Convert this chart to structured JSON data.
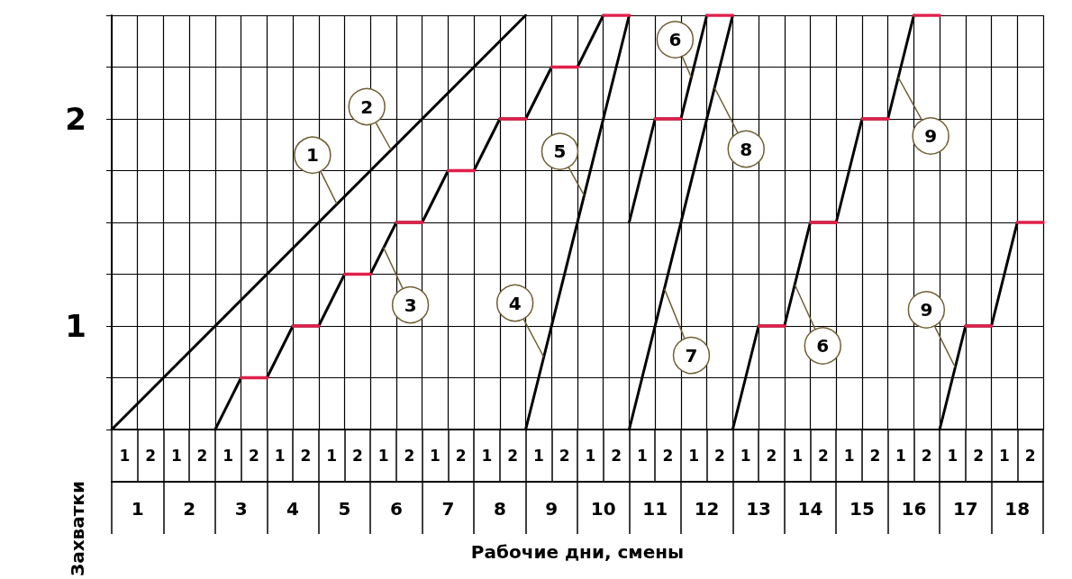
{
  "chart_data": {
    "type": "line",
    "xlabel": "Рабочие дни, смены",
    "ylabel": "Захватки",
    "xlim": [
      0.5,
      18.5
    ],
    "ylim": [
      0.5,
      2.5
    ],
    "grid": true,
    "marker": "none",
    "line_style": "solid",
    "xticks": [
      {
        "value": 0.5,
        "label": null
      },
      1,
      {
        "value": 1.5,
        "label": null
      },
      2,
      {
        "value": 2.5,
        "label": null
      },
      3,
      {
        "value": 3.5,
        "label": null
      },
      4,
      {
        "value": 4.5,
        "label": null
      },
      5,
      {
        "value": 5.5,
        "label": null
      },
      6,
      {
        "value": 6.5,
        "label": null
      },
      7,
      {
        "value": 7.5,
        "label": null
      },
      8,
      {
        "value": 8.5,
        "label": null
      },
      9,
      {
        "value": 9.5,
        "label": null
      },
      10,
      {
        "value": 10.5,
        "label": null
      },
      11,
      {
        "value": 11.5,
        "label": null
      },
      12,
      {
        "value": 12.5,
        "label": null
      },
      13,
      {
        "value": 13.5,
        "label": null
      },
      14,
      {
        "value": 14.5,
        "label": null
      },
      15,
      {
        "value": 15.5,
        "label": null
      },
      16,
      {
        "value": 16.5,
        "label": null
      },
      17,
      {
        "value": 17.5,
        "label": null
      },
      18,
      {
        "value": 18.5,
        "label": null
      }
    ],
    "yticks": [
      {
        "value": 0.5,
        "label": null
      },
      {
        "value": 0.75,
        "label": null
      },
      1,
      {
        "value": 1.25,
        "label": null
      },
      {
        "value": 1.5,
        "label": null
      },
      {
        "value": 1.75,
        "label": null
      },
      2,
      {
        "value": 2.25,
        "label": null
      },
      {
        "value": 2.5,
        "label": null
      }
    ],
    "series": [
      {
        "color": "#000000",
        "x": [
          0.5,
          8.5
        ],
        "values": [
          0.5,
          2.5
        ]
      },
      {
        "color": "#000000",
        "x": [
          2.5,
          3,
          3.5,
          4,
          4.5,
          5,
          5.5,
          6,
          6.5,
          7,
          7.5,
          8,
          8.5,
          9,
          9.5,
          10
        ],
        "values": [
          0.5,
          0.75,
          0.75,
          1,
          1,
          1.25,
          1.25,
          1.5,
          1.5,
          1.75,
          1.75,
          2,
          2,
          2.25,
          2.25,
          2.5
        ]
      },
      {
        "color": "#000000",
        "x": [
          8.5,
          10.5
        ],
        "values": [
          0.5,
          2.5
        ]
      },
      {
        "color": "#000000",
        "x": [
          10.5,
          12.5
        ],
        "values": [
          0.5,
          2.5
        ]
      },
      {
        "color": "#000000",
        "x": [
          10.5,
          11,
          11.5,
          12
        ],
        "values": [
          1.5,
          2,
          2,
          2.5
        ]
      },
      {
        "color": "#000000",
        "x": [
          12.5,
          13,
          13.5,
          14,
          14.5,
          15,
          15.5,
          16
        ],
        "values": [
          0.5,
          1,
          1,
          1.5,
          1.5,
          2,
          2,
          2.5
        ]
      },
      {
        "color": "#000000",
        "x": [
          16.5,
          17,
          17.5,
          18
        ],
        "values": [
          0.5,
          1,
          1,
          1.5
        ]
      },
      {
        "color": "#e0204a",
        "x": [
          3,
          3.5
        ],
        "values": [
          0.75,
          0.75
        ]
      },
      {
        "color": "#e0204a",
        "x": [
          4,
          4.5
        ],
        "values": [
          1,
          1
        ]
      },
      {
        "color": "#e0204a",
        "x": [
          5,
          5.5
        ],
        "values": [
          1.25,
          1.25
        ]
      },
      {
        "color": "#e0204a",
        "x": [
          6,
          6.5
        ],
        "values": [
          1.5,
          1.5
        ]
      },
      {
        "color": "#e0204a",
        "x": [
          7,
          7.5
        ],
        "values": [
          1.75,
          1.75
        ]
      },
      {
        "color": "#e0204a",
        "x": [
          8,
          8.5
        ],
        "values": [
          2,
          2
        ]
      },
      {
        "color": "#e0204a",
        "x": [
          9,
          9.5
        ],
        "values": [
          2.25,
          2.25
        ]
      },
      {
        "color": "#e0204a",
        "x": [
          10,
          10.5
        ],
        "values": [
          2.5,
          2.5
        ]
      },
      {
        "color": "#e0204a",
        "x": [
          11,
          11.5
        ],
        "values": [
          2,
          2
        ]
      },
      {
        "color": "#e0204a",
        "x": [
          12,
          12.5
        ],
        "values": [
          2.5,
          2.5
        ]
      },
      {
        "color": "#e0204a",
        "x": [
          13,
          13.5
        ],
        "values": [
          1,
          1
        ]
      },
      {
        "color": "#e0204a",
        "x": [
          14,
          14.5
        ],
        "values": [
          1.5,
          1.5
        ]
      },
      {
        "color": "#e0204a",
        "x": [
          15,
          15.5
        ],
        "values": [
          2,
          2
        ]
      },
      {
        "color": "#e0204a",
        "x": [
          16,
          16.5
        ],
        "values": [
          2.5,
          2.5
        ]
      },
      {
        "color": "#e0204a",
        "x": [
          17,
          17.5
        ],
        "values": [
          1,
          1
        ]
      },
      {
        "color": "#e0204a",
        "x": [
          18,
          18.5
        ],
        "values": [
          1.5,
          1.5
        ]
      }
    ],
    "annotations": [
      {
        "text": "1",
        "x": 4.85,
        "y": 1.59
      },
      {
        "text": "2",
        "x": 5.9,
        "y": 1.85
      },
      {
        "text": "3",
        "x": 5.75,
        "y": 1.38
      },
      {
        "text": "4",
        "x": 8.85,
        "y": 0.85
      },
      {
        "text": "5",
        "x": 9.63,
        "y": 1.63
      },
      {
        "text": "6",
        "x": 11.7,
        "y": 2.2
      },
      {
        "text": "8",
        "x": 12.15,
        "y": 2.15
      },
      {
        "text": "7",
        "x": 11.18,
        "y": 1.18
      },
      {
        "text": "6",
        "x": 13.7,
        "y": 1.2
      },
      {
        "text": "9",
        "x": 15.7,
        "y": 2.2
      },
      {
        "text": "9",
        "x": 16.8,
        "y": 0.8
      },
      "1",
      "2",
      "1",
      "2",
      "1",
      "2",
      "1",
      "2",
      "1",
      "2",
      "1",
      "2",
      "1",
      "2",
      "1",
      "2",
      "1",
      "2",
      "1",
      "2",
      "1",
      "2",
      "1",
      "2",
      "1",
      "2",
      "1",
      "2",
      "1",
      "2",
      "1",
      "2",
      "1",
      "2",
      "1",
      "2"
    ]
  }
}
